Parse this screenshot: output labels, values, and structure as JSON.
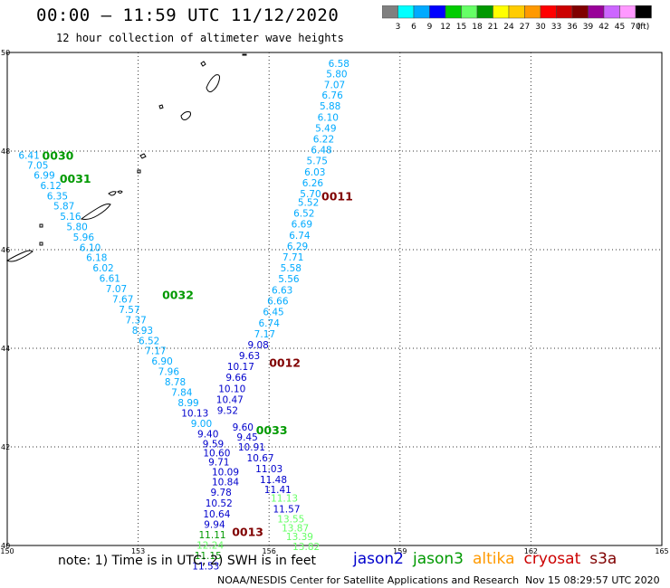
{
  "header": {
    "title": "00:00 – 11:59 UTC 11/12/2020",
    "subtitle": "12 hour collection of altimeter wave heights"
  },
  "colorbar": {
    "colors": [
      "#808080",
      "#00ffff",
      "#00aaff",
      "#0000ff",
      "#00cc00",
      "#66ff66",
      "#009900",
      "#ffff00",
      "#ffcc00",
      "#ff9900",
      "#ff0000",
      "#cc0000",
      "#800000",
      "#990099",
      "#cc66ff",
      "#ff99ff",
      "#000000"
    ],
    "labels": [
      "3",
      "6",
      "9",
      "12",
      "15",
      "18",
      "21",
      "24",
      "27",
      "30",
      "33",
      "36",
      "39",
      "42",
      "45",
      "70"
    ],
    "unit": "(ft)"
  },
  "footer": {
    "note": "note: 1) Time is in UTC; 2) SWH is in feet",
    "credit": "NOAA/NESDIS Center for Satellite Applications and Research",
    "stamp": "Nov 15 08:29:57 UTC 2020"
  },
  "legend": [
    {
      "name": "jason2",
      "color": "#0000cc"
    },
    {
      "name": "jason3",
      "color": "#009900"
    },
    {
      "name": "altika",
      "color": "#ff9900"
    },
    {
      "name": "cryosat",
      "color": "#cc0000"
    },
    {
      "name": "s3a",
      "color": "#800000"
    }
  ],
  "chart_data": {
    "type": "scatter",
    "xlim": [
      150,
      165
    ],
    "ylim": [
      40,
      50
    ],
    "x_ticks": [
      "150",
      "153",
      "156",
      "159",
      "162",
      "165"
    ],
    "y_ticks": [
      "40",
      "42",
      "44",
      "46",
      "48",
      "50"
    ],
    "grid": true,
    "track_labels": [
      {
        "text": "0030",
        "lon": 150.8,
        "lat": 47.92,
        "color": "#009900"
      },
      {
        "text": "0031",
        "lon": 151.2,
        "lat": 47.45,
        "color": "#009900"
      },
      {
        "text": "0011",
        "lon": 157.2,
        "lat": 47.09,
        "color": "#800000"
      },
      {
        "text": "0032",
        "lon": 153.55,
        "lat": 45.09,
        "color": "#009900"
      },
      {
        "text": "0012",
        "lon": 156.0,
        "lat": 43.72,
        "color": "#800000"
      },
      {
        "text": "0033",
        "lon": 155.7,
        "lat": 42.35,
        "color": "#009900"
      },
      {
        "text": "0013",
        "lon": 155.15,
        "lat": 40.28,
        "color": "#800000"
      }
    ],
    "series": [
      {
        "name": "s3a",
        "points": [
          {
            "lon": 157.6,
            "lat": 49.78,
            "v": "6.58",
            "c": "#00aaff"
          },
          {
            "lon": 157.55,
            "lat": 49.57,
            "v": "5.80",
            "c": "#00aaff"
          },
          {
            "lon": 157.5,
            "lat": 49.35,
            "v": "7.07",
            "c": "#00aaff"
          },
          {
            "lon": 157.45,
            "lat": 49.14,
            "v": "6.76",
            "c": "#00aaff"
          },
          {
            "lon": 157.4,
            "lat": 48.92,
            "v": "5.88",
            "c": "#00aaff"
          },
          {
            "lon": 157.35,
            "lat": 48.69,
            "v": "6.10",
            "c": "#00aaff"
          },
          {
            "lon": 157.3,
            "lat": 48.47,
            "v": "5.49",
            "c": "#00aaff"
          },
          {
            "lon": 157.25,
            "lat": 48.25,
            "v": "6.22",
            "c": "#00aaff"
          },
          {
            "lon": 157.2,
            "lat": 48.03,
            "v": "6.48",
            "c": "#00aaff"
          },
          {
            "lon": 157.1,
            "lat": 47.81,
            "v": "5.75",
            "c": "#00aaff"
          },
          {
            "lon": 157.05,
            "lat": 47.58,
            "v": "6.03",
            "c": "#00aaff"
          },
          {
            "lon": 157.0,
            "lat": 47.36,
            "v": "6.26",
            "c": "#00aaff"
          },
          {
            "lon": 156.95,
            "lat": 47.14,
            "v": "5.70",
            "c": "#00aaff"
          },
          {
            "lon": 156.9,
            "lat": 46.96,
            "v": "5.52",
            "c": "#00aaff"
          },
          {
            "lon": 156.8,
            "lat": 46.74,
            "v": "6.52",
            "c": "#00aaff"
          },
          {
            "lon": 156.75,
            "lat": 46.52,
            "v": "6.69",
            "c": "#00aaff"
          },
          {
            "lon": 156.7,
            "lat": 46.29,
            "v": "6.74",
            "c": "#00aaff"
          },
          {
            "lon": 156.65,
            "lat": 46.07,
            "v": "6.29",
            "c": "#00aaff"
          },
          {
            "lon": 156.55,
            "lat": 45.85,
            "v": "7.71",
            "c": "#00aaff"
          },
          {
            "lon": 156.5,
            "lat": 45.63,
            "v": "5.58",
            "c": "#00aaff"
          },
          {
            "lon": 156.45,
            "lat": 45.41,
            "v": "5.56",
            "c": "#00aaff"
          },
          {
            "lon": 156.3,
            "lat": 45.18,
            "v": "6.63",
            "c": "#00aaff"
          },
          {
            "lon": 156.2,
            "lat": 44.96,
            "v": "6.66",
            "c": "#00aaff"
          },
          {
            "lon": 156.1,
            "lat": 44.74,
            "v": "6.45",
            "c": "#00aaff"
          },
          {
            "lon": 156.0,
            "lat": 44.51,
            "v": "6.74",
            "c": "#00aaff"
          },
          {
            "lon": 155.9,
            "lat": 44.29,
            "v": "7.17",
            "c": "#00aaff"
          },
          {
            "lon": 155.75,
            "lat": 44.07,
            "v": "9.08",
            "c": "#0000cc"
          },
          {
            "lon": 155.55,
            "lat": 43.85,
            "v": "9.63",
            "c": "#0000cc"
          },
          {
            "lon": 155.35,
            "lat": 43.63,
            "v": "10.17",
            "c": "#0000cc"
          },
          {
            "lon": 155.25,
            "lat": 43.41,
            "v": "9.66",
            "c": "#0000cc"
          },
          {
            "lon": 155.15,
            "lat": 43.18,
            "v": "10.10",
            "c": "#0000cc"
          },
          {
            "lon": 155.1,
            "lat": 42.96,
            "v": "10.47",
            "c": "#0000cc"
          },
          {
            "lon": 155.05,
            "lat": 42.74,
            "v": "9.52",
            "c": "#0000cc"
          },
          {
            "lon": 155.4,
            "lat": 42.4,
            "v": "9.60",
            "c": "#0000cc"
          },
          {
            "lon": 155.5,
            "lat": 42.2,
            "v": "9.45",
            "c": "#0000cc"
          },
          {
            "lon": 155.6,
            "lat": 42.0,
            "v": "10.91",
            "c": "#0000cc"
          },
          {
            "lon": 155.8,
            "lat": 41.78,
            "v": "10.67",
            "c": "#0000cc"
          },
          {
            "lon": 156.0,
            "lat": 41.56,
            "v": "11.03",
            "c": "#0000cc"
          },
          {
            "lon": 156.1,
            "lat": 41.34,
            "v": "11.48",
            "c": "#0000cc"
          },
          {
            "lon": 156.2,
            "lat": 41.14,
            "v": "11.41",
            "c": "#0000cc"
          },
          {
            "lon": 156.35,
            "lat": 40.96,
            "v": "11.13",
            "c": "#66ff66"
          },
          {
            "lon": 156.4,
            "lat": 40.74,
            "v": "11.57",
            "c": "#0000cc"
          },
          {
            "lon": 156.5,
            "lat": 40.54,
            "v": "13.55",
            "c": "#66ff66"
          },
          {
            "lon": 156.6,
            "lat": 40.36,
            "v": "13.87",
            "c": "#66ff66"
          },
          {
            "lon": 156.7,
            "lat": 40.18,
            "v": "13.39",
            "c": "#66ff66"
          },
          {
            "lon": 156.85,
            "lat": 39.98,
            "v": "13.82",
            "c": "#66ff66"
          }
        ]
      },
      {
        "name": "jason3",
        "points": [
          {
            "lon": 150.5,
            "lat": 47.92,
            "v": "6.41",
            "c": "#00aaff"
          },
          {
            "lon": 150.7,
            "lat": 47.72,
            "v": "7.05",
            "c": "#00aaff"
          },
          {
            "lon": 150.85,
            "lat": 47.51,
            "v": "6.99",
            "c": "#00aaff"
          },
          {
            "lon": 151.0,
            "lat": 47.3,
            "v": "6.12",
            "c": "#00aaff"
          },
          {
            "lon": 151.15,
            "lat": 47.09,
            "v": "6.35",
            "c": "#00aaff"
          },
          {
            "lon": 151.3,
            "lat": 46.89,
            "v": "5.87",
            "c": "#00aaff"
          },
          {
            "lon": 151.45,
            "lat": 46.68,
            "v": "5.16",
            "c": "#00aaff"
          },
          {
            "lon": 151.6,
            "lat": 46.47,
            "v": "5.80",
            "c": "#00aaff"
          },
          {
            "lon": 151.75,
            "lat": 46.26,
            "v": "5.96",
            "c": "#00aaff"
          },
          {
            "lon": 151.9,
            "lat": 46.05,
            "v": "6.10",
            "c": "#00aaff"
          },
          {
            "lon": 152.05,
            "lat": 45.84,
            "v": "6.18",
            "c": "#00aaff"
          },
          {
            "lon": 152.2,
            "lat": 45.63,
            "v": "6.02",
            "c": "#00aaff"
          },
          {
            "lon": 152.35,
            "lat": 45.42,
            "v": "6.61",
            "c": "#00aaff"
          },
          {
            "lon": 152.5,
            "lat": 45.21,
            "v": "7.07",
            "c": "#00aaff"
          },
          {
            "lon": 152.65,
            "lat": 45.0,
            "v": "7.67",
            "c": "#00aaff"
          },
          {
            "lon": 152.8,
            "lat": 44.79,
            "v": "7.57",
            "c": "#00aaff"
          },
          {
            "lon": 152.95,
            "lat": 44.58,
            "v": "7.37",
            "c": "#00aaff"
          },
          {
            "lon": 153.1,
            "lat": 44.37,
            "v": "8.93",
            "c": "#00aaff"
          },
          {
            "lon": 153.25,
            "lat": 44.16,
            "v": "6.52",
            "c": "#00aaff"
          },
          {
            "lon": 153.4,
            "lat": 43.95,
            "v": "7.17",
            "c": "#00aaff"
          },
          {
            "lon": 153.55,
            "lat": 43.74,
            "v": "6.90",
            "c": "#00aaff"
          },
          {
            "lon": 153.7,
            "lat": 43.53,
            "v": "7.96",
            "c": "#00aaff"
          },
          {
            "lon": 153.85,
            "lat": 43.32,
            "v": "8.78",
            "c": "#00aaff"
          },
          {
            "lon": 154.0,
            "lat": 43.11,
            "v": "7.84",
            "c": "#00aaff"
          },
          {
            "lon": 154.15,
            "lat": 42.9,
            "v": "8.99",
            "c": "#00aaff"
          },
          {
            "lon": 154.3,
            "lat": 42.69,
            "v": "10.13",
            "c": "#0000cc"
          },
          {
            "lon": 154.45,
            "lat": 42.48,
            "v": "9.00",
            "c": "#00aaff"
          },
          {
            "lon": 154.6,
            "lat": 42.27,
            "v": "9.40",
            "c": "#0000cc"
          },
          {
            "lon": 154.72,
            "lat": 42.06,
            "v": "9.59",
            "c": "#0000cc"
          },
          {
            "lon": 154.8,
            "lat": 41.88,
            "v": "10.60",
            "c": "#0000cc"
          },
          {
            "lon": 154.85,
            "lat": 41.7,
            "v": "9.71",
            "c": "#0000cc"
          },
          {
            "lon": 155.0,
            "lat": 41.5,
            "v": "10.09",
            "c": "#0000cc"
          },
          {
            "lon": 155.0,
            "lat": 41.29,
            "v": "10.84",
            "c": "#0000cc"
          },
          {
            "lon": 154.9,
            "lat": 41.08,
            "v": "9.78",
            "c": "#0000cc"
          },
          {
            "lon": 154.85,
            "lat": 40.86,
            "v": "10.52",
            "c": "#0000cc"
          },
          {
            "lon": 154.8,
            "lat": 40.64,
            "v": "10.64",
            "c": "#0000cc"
          },
          {
            "lon": 154.75,
            "lat": 40.43,
            "v": "9.94",
            "c": "#0000cc"
          },
          {
            "lon": 154.7,
            "lat": 40.22,
            "v": "11.11",
            "c": "#009900"
          },
          {
            "lon": 154.65,
            "lat": 40.01,
            "v": "12.24",
            "c": "#66ff66"
          },
          {
            "lon": 154.6,
            "lat": 39.8,
            "v": "11.15",
            "c": "#009900"
          },
          {
            "lon": 154.55,
            "lat": 39.59,
            "v": "11.53",
            "c": "#0000cc"
          }
        ]
      }
    ]
  }
}
